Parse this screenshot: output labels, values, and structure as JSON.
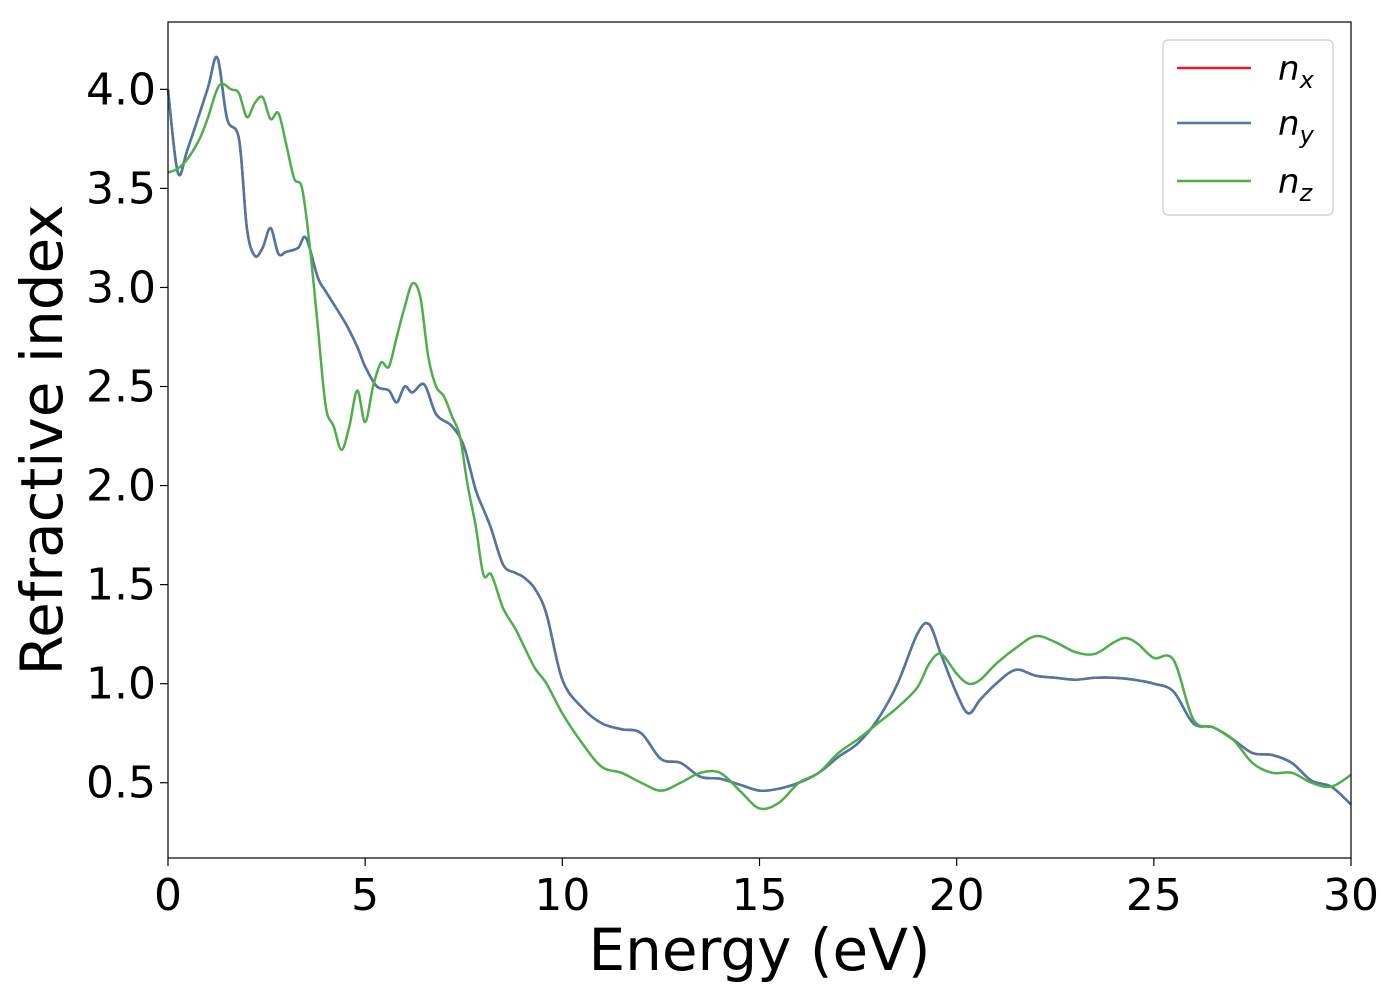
{
  "chart_data": {
    "type": "line",
    "title": "",
    "xlabel": "Energy (eV)",
    "ylabel": "Refractive index",
    "xlim": [
      0,
      30
    ],
    "ylim": [
      0.12,
      4.34
    ],
    "xticks": [
      0,
      5,
      10,
      15,
      20,
      25,
      30
    ],
    "xtick_labels": [
      "0",
      "5",
      "10",
      "15",
      "20",
      "25",
      "30"
    ],
    "yticks": [
      0.5,
      1.0,
      1.5,
      2.0,
      2.5,
      3.0,
      3.5,
      4.0
    ],
    "ytick_labels": [
      "0.5",
      "1.0",
      "1.5",
      "2.0",
      "2.5",
      "3.0",
      "3.5",
      "4.0"
    ],
    "grid": false,
    "legend_position": "top-right",
    "series": [
      {
        "name": "n_x",
        "legend_base": "n",
        "legend_sub": "x",
        "color": "#e41a1c",
        "x": [
          0,
          0.25,
          0.5,
          1.0,
          1.25,
          1.5,
          1.8,
          2.0,
          2.2,
          2.4,
          2.6,
          2.8,
          3.0,
          3.3,
          3.5,
          3.8,
          4.0,
          4.5,
          4.8,
          5.0,
          5.3,
          5.6,
          5.8,
          6.0,
          6.2,
          6.5,
          6.8,
          7.2,
          7.5,
          7.8,
          8.0,
          8.2,
          8.5,
          8.8,
          9.0,
          9.3,
          9.6,
          10.0,
          10.5,
          11.0,
          11.5,
          12.0,
          12.5,
          13.0,
          13.5,
          14.0,
          14.5,
          15.0,
          15.5,
          16.0,
          16.5,
          17.0,
          17.5,
          18.0,
          18.5,
          19.0,
          19.3,
          19.6,
          20.0,
          20.3,
          20.6,
          21.0,
          21.5,
          22.0,
          22.5,
          23.0,
          23.5,
          24.0,
          24.5,
          25.0,
          25.5,
          26.0,
          26.5,
          27.0,
          27.5,
          28.0,
          28.5,
          29.0,
          29.5,
          30.0
        ],
        "y": [
          4.0,
          3.58,
          3.7,
          4.0,
          4.16,
          3.85,
          3.75,
          3.3,
          3.16,
          3.2,
          3.3,
          3.17,
          3.18,
          3.2,
          3.25,
          3.05,
          2.98,
          2.82,
          2.7,
          2.6,
          2.5,
          2.48,
          2.42,
          2.5,
          2.47,
          2.51,
          2.36,
          2.3,
          2.2,
          1.98,
          1.88,
          1.78,
          1.6,
          1.56,
          1.54,
          1.48,
          1.35,
          1.02,
          0.88,
          0.8,
          0.77,
          0.75,
          0.62,
          0.6,
          0.53,
          0.52,
          0.49,
          0.46,
          0.47,
          0.5,
          0.55,
          0.63,
          0.7,
          0.82,
          1.0,
          1.25,
          1.3,
          1.15,
          0.95,
          0.85,
          0.92,
          1.0,
          1.07,
          1.04,
          1.03,
          1.02,
          1.03,
          1.03,
          1.02,
          1.0,
          0.96,
          0.8,
          0.78,
          0.72,
          0.65,
          0.64,
          0.6,
          0.51,
          0.48,
          0.39
        ]
      },
      {
        "name": "n_y",
        "legend_base": "n",
        "legend_sub": "y",
        "color": "#4a79a8",
        "x": [
          0,
          0.25,
          0.5,
          1.0,
          1.25,
          1.5,
          1.8,
          2.0,
          2.2,
          2.4,
          2.6,
          2.8,
          3.0,
          3.3,
          3.5,
          3.8,
          4.0,
          4.5,
          4.8,
          5.0,
          5.3,
          5.6,
          5.8,
          6.0,
          6.2,
          6.5,
          6.8,
          7.2,
          7.5,
          7.8,
          8.0,
          8.2,
          8.5,
          8.8,
          9.0,
          9.3,
          9.6,
          10.0,
          10.5,
          11.0,
          11.5,
          12.0,
          12.5,
          13.0,
          13.5,
          14.0,
          14.5,
          15.0,
          15.5,
          16.0,
          16.5,
          17.0,
          17.5,
          18.0,
          18.5,
          19.0,
          19.3,
          19.6,
          20.0,
          20.3,
          20.6,
          21.0,
          21.5,
          22.0,
          22.5,
          23.0,
          23.5,
          24.0,
          24.5,
          25.0,
          25.5,
          26.0,
          26.5,
          27.0,
          27.5,
          28.0,
          28.5,
          29.0,
          29.5,
          30.0
        ],
        "y": [
          4.0,
          3.58,
          3.7,
          4.0,
          4.16,
          3.85,
          3.75,
          3.3,
          3.16,
          3.2,
          3.3,
          3.17,
          3.18,
          3.2,
          3.25,
          3.05,
          2.98,
          2.82,
          2.7,
          2.6,
          2.5,
          2.48,
          2.42,
          2.5,
          2.47,
          2.51,
          2.36,
          2.3,
          2.2,
          1.98,
          1.88,
          1.78,
          1.6,
          1.56,
          1.54,
          1.48,
          1.35,
          1.02,
          0.88,
          0.8,
          0.77,
          0.75,
          0.62,
          0.6,
          0.53,
          0.52,
          0.49,
          0.46,
          0.47,
          0.5,
          0.55,
          0.63,
          0.7,
          0.82,
          1.0,
          1.25,
          1.3,
          1.15,
          0.95,
          0.85,
          0.92,
          1.0,
          1.07,
          1.04,
          1.03,
          1.02,
          1.03,
          1.03,
          1.02,
          1.0,
          0.96,
          0.8,
          0.78,
          0.72,
          0.65,
          0.64,
          0.6,
          0.51,
          0.48,
          0.39
        ]
      },
      {
        "name": "n_z",
        "legend_base": "n",
        "legend_sub": "z",
        "color": "#4daf4a",
        "x": [
          0,
          0.25,
          0.5,
          0.8,
          1.0,
          1.3,
          1.6,
          1.8,
          2.0,
          2.2,
          2.4,
          2.6,
          2.8,
          3.0,
          3.2,
          3.4,
          3.6,
          3.8,
          4.0,
          4.2,
          4.4,
          4.6,
          4.8,
          5.0,
          5.2,
          5.4,
          5.6,
          5.8,
          6.0,
          6.2,
          6.4,
          6.6,
          6.8,
          7.0,
          7.2,
          7.4,
          7.6,
          7.8,
          8.0,
          8.2,
          8.5,
          8.8,
          9.0,
          9.3,
          9.6,
          10.0,
          10.5,
          11.0,
          11.5,
          12.0,
          12.5,
          13.0,
          13.5,
          14.0,
          14.5,
          15.0,
          15.5,
          16.0,
          16.5,
          17.0,
          17.5,
          18.0,
          18.5,
          19.0,
          19.3,
          19.6,
          20.0,
          20.3,
          20.6,
          21.0,
          21.5,
          22.0,
          22.5,
          23.0,
          23.5,
          24.0,
          24.3,
          24.6,
          25.0,
          25.5,
          26.0,
          26.5,
          27.0,
          27.5,
          28.0,
          28.5,
          29.0,
          29.5,
          30.0
        ],
        "y": [
          3.58,
          3.6,
          3.65,
          3.75,
          3.85,
          4.02,
          4.0,
          3.98,
          3.86,
          3.93,
          3.96,
          3.85,
          3.88,
          3.72,
          3.55,
          3.5,
          3.2,
          2.8,
          2.4,
          2.3,
          2.18,
          2.3,
          2.48,
          2.32,
          2.5,
          2.62,
          2.6,
          2.75,
          2.9,
          3.02,
          2.95,
          2.65,
          2.5,
          2.45,
          2.35,
          2.25,
          2.0,
          1.8,
          1.55,
          1.55,
          1.38,
          1.28,
          1.2,
          1.08,
          1.0,
          0.85,
          0.7,
          0.58,
          0.55,
          0.5,
          0.46,
          0.5,
          0.55,
          0.55,
          0.46,
          0.37,
          0.4,
          0.5,
          0.55,
          0.65,
          0.72,
          0.8,
          0.88,
          0.98,
          1.1,
          1.15,
          1.05,
          1.0,
          1.02,
          1.1,
          1.18,
          1.24,
          1.21,
          1.16,
          1.15,
          1.21,
          1.23,
          1.2,
          1.13,
          1.12,
          0.82,
          0.78,
          0.72,
          0.6,
          0.55,
          0.55,
          0.5,
          0.48,
          0.54
        ]
      }
    ]
  }
}
